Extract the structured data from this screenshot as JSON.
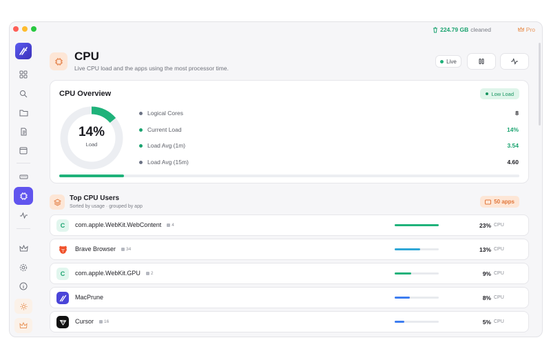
{
  "topbar": {
    "cleaned_value": "224.79 GB",
    "cleaned_label": "cleaned",
    "pro_label": "Pro"
  },
  "sidebar": {
    "items": [
      "dashboard-icon",
      "search-icon",
      "folder-icon",
      "document-icon",
      "window-icon",
      "memory-icon",
      "cpu-icon",
      "activity-icon",
      "crown-icon",
      "settings-icon",
      "info-icon",
      "sun-icon",
      "crown-icon"
    ],
    "active": "cpu-icon"
  },
  "header": {
    "title": "CPU",
    "subtitle": "Live CPU load and the apps using the most processor time.",
    "live_label": "Live"
  },
  "overview": {
    "title": "CPU Overview",
    "status": "Low Load",
    "donut_value": "14%",
    "donut_label": "Load",
    "load_fraction": 0.14,
    "stats": [
      {
        "label": "Logical Cores",
        "value": "8",
        "color": "#6b7284"
      },
      {
        "label": "Current Load",
        "value": "14%",
        "color": "#1aa36f"
      },
      {
        "label": "Load Avg (1m)",
        "value": "3.54",
        "color": "#1aa36f"
      },
      {
        "label": "Load Avg (15m)",
        "value": "4.60",
        "color": "#6b7284"
      }
    ]
  },
  "top_users": {
    "title": "Top CPU Users",
    "subtitle": "Sorted by usage · grouped by app",
    "count_badge": "50 apps",
    "unit": "CPU",
    "rows": [
      {
        "name": "com.apple.WebKit.WebContent",
        "count": "4",
        "pct": "23%",
        "value": 1.0,
        "bar_color": "#1fb27a",
        "icon": "C",
        "icon_bg": "#e1f6ee",
        "icon_fg": "#1aa36f"
      },
      {
        "name": "Brave Browser",
        "count": "34",
        "pct": "13%",
        "value": 0.58,
        "bar_color": "#2fa7d6",
        "icon": "brave-icon",
        "icon_bg": "#fff",
        "icon_fg": "#f0532d"
      },
      {
        "name": "com.apple.WebKit.GPU",
        "count": "2",
        "pct": "9%",
        "value": 0.38,
        "bar_color": "#1fb27a",
        "icon": "C",
        "icon_bg": "#e1f6ee",
        "icon_fg": "#1aa36f"
      },
      {
        "name": "MacPrune",
        "count": "",
        "pct": "8%",
        "value": 0.35,
        "bar_color": "#3d7df0",
        "icon": "macprune-icon",
        "icon_bg": "#4a45d8",
        "icon_fg": "#ffffff"
      },
      {
        "name": "Cursor",
        "count": "16",
        "pct": "5%",
        "value": 0.22,
        "bar_color": "#3d7df0",
        "icon": "cursor-icon",
        "icon_bg": "#111111",
        "icon_fg": "#ffffff"
      }
    ]
  }
}
